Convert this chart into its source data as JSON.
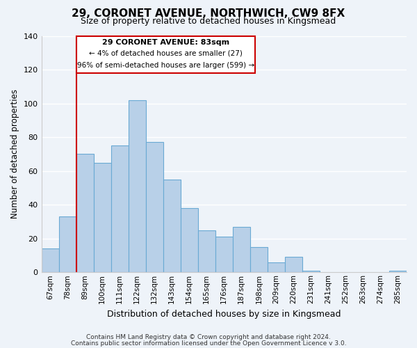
{
  "title": "29, CORONET AVENUE, NORTHWICH, CW9 8FX",
  "subtitle": "Size of property relative to detached houses in Kingsmead",
  "xlabel": "Distribution of detached houses by size in Kingsmead",
  "ylabel": "Number of detached properties",
  "bar_labels": [
    "67sqm",
    "78sqm",
    "89sqm",
    "100sqm",
    "111sqm",
    "122sqm",
    "132sqm",
    "143sqm",
    "154sqm",
    "165sqm",
    "176sqm",
    "187sqm",
    "198sqm",
    "209sqm",
    "220sqm",
    "231sqm",
    "241sqm",
    "252sqm",
    "263sqm",
    "274sqm",
    "285sqm"
  ],
  "bar_values": [
    14,
    33,
    70,
    65,
    75,
    102,
    77,
    55,
    38,
    25,
    21,
    27,
    15,
    6,
    9,
    1,
    0,
    0,
    0,
    0,
    1
  ],
  "bar_color": "#b8d0e8",
  "bar_edge_color": "#6aaad4",
  "ylim": [
    0,
    140
  ],
  "yticks": [
    0,
    20,
    40,
    60,
    80,
    100,
    120,
    140
  ],
  "property_line_label": "29 CORONET AVENUE: 83sqm",
  "annotation_line1": "← 4% of detached houses are smaller (27)",
  "annotation_line2": "96% of semi-detached houses are larger (599) →",
  "annotation_box_color": "#ffffff",
  "annotation_box_edge_color": "#cc0000",
  "property_line_color": "#cc0000",
  "footer_line1": "Contains HM Land Registry data © Crown copyright and database right 2024.",
  "footer_line2": "Contains public sector information licensed under the Open Government Licence v 3.0.",
  "background_color": "#eef3f9",
  "grid_color": "#ffffff"
}
